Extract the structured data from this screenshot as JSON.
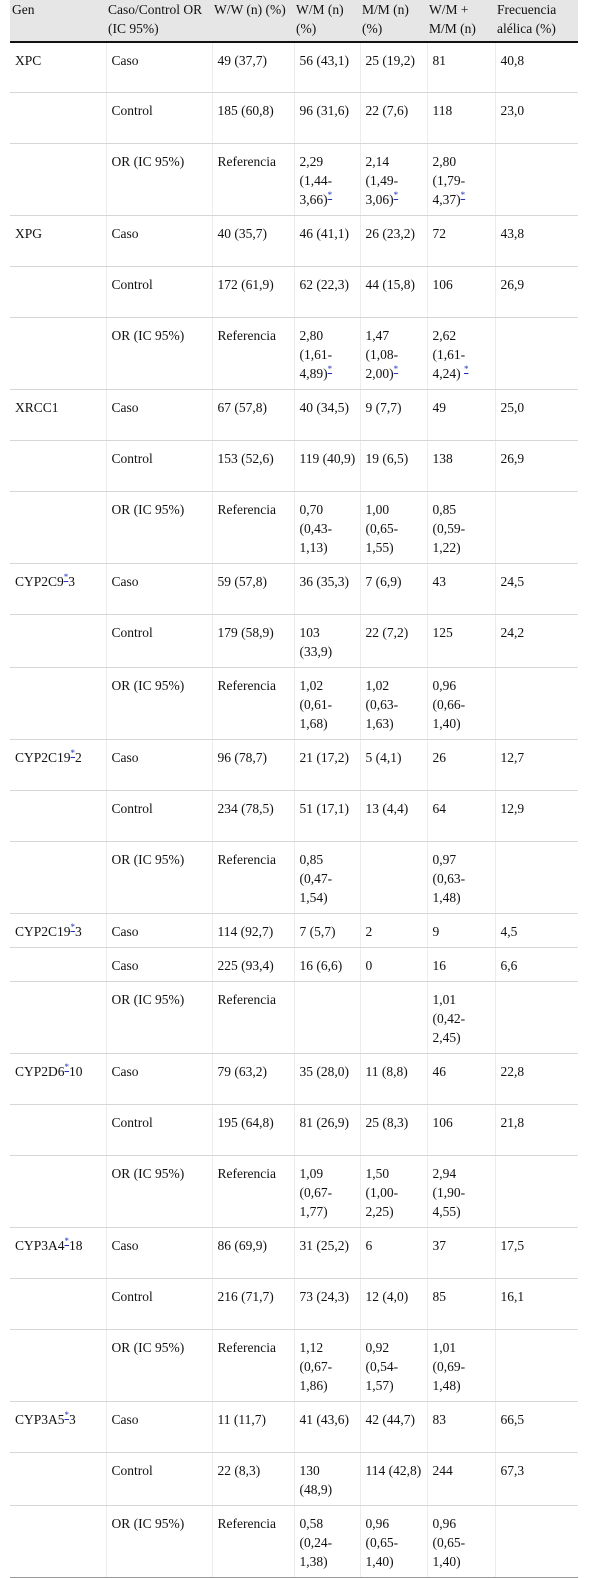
{
  "headers": [
    "Gen",
    "Caso/Control OR (IC 95%)",
    "W/W (n) (%)",
    "W/M (n) (%)",
    "M/M (n) (%)",
    "W/M + M/M (n)",
    "Frecuencia alélica (%)"
  ],
  "rows": [
    {
      "h": 50,
      "gene": "XPC",
      "gene_ref": "",
      "gene_suffix": "",
      "group": "Caso",
      "ww": "49 (37,7)",
      "wm": "56 (43,1)",
      "mm": "25 (19,2)",
      "wmmm": "81",
      "freq": "40,8"
    },
    {
      "h": 51,
      "gene": "",
      "gene_ref": "",
      "gene_suffix": "",
      "group": "Control",
      "ww": "185 (60,8)",
      "wm": "96 (31,6)",
      "mm": "22 (7,6)",
      "wmmm": "118",
      "freq": "23,0"
    },
    {
      "h": 71,
      "gene": "",
      "gene_ref": "",
      "gene_suffix": "",
      "group": "OR (IC 95%)",
      "ww": "Referencia",
      "wm": "2,29 (1,44-3,66)",
      "wm_ref": "*",
      "mm": "2,14 (1,49-3,06)",
      "mm_ref": "*",
      "wmmm": "2,80 (1,79-4,37)",
      "wmmm_ref": "*",
      "freq": ""
    },
    {
      "h": 51,
      "gene": "XPG",
      "gene_ref": "",
      "gene_suffix": "",
      "group": "Caso",
      "ww": "40 (35,7)",
      "wm": "46 (41,1)",
      "mm": "26 (23,2)",
      "wmmm": "72",
      "freq": "43,8"
    },
    {
      "h": 51,
      "gene": "",
      "gene_ref": "",
      "gene_suffix": "",
      "group": "Control",
      "ww": "172 (61,9)",
      "wm": "62 (22,3)",
      "mm": "44 (15,8)",
      "wmmm": "106",
      "freq": "26,9"
    },
    {
      "h": 71,
      "gene": "",
      "gene_ref": "",
      "gene_suffix": "",
      "group": "OR (IC 95%)",
      "ww": "Referencia",
      "wm": "2,80 (1,61-4,89)",
      "wm_ref": "*",
      "mm": "1,47 (1,08-2,00)",
      "mm_ref": "*",
      "wmmm": "2,62 (1,61-4,24) ",
      "wmmm_ref": "*",
      "freq": ""
    },
    {
      "h": 51,
      "gene": "XRCC1",
      "gene_ref": "",
      "gene_suffix": "",
      "group": "Caso",
      "ww": "67 (57,8)",
      "wm": "40 (34,5)",
      "mm": "9 (7,7)",
      "wmmm": "49",
      "freq": "25,0"
    },
    {
      "h": 51,
      "gene": "",
      "gene_ref": "",
      "gene_suffix": "",
      "group": "Control",
      "ww": "153 (52,6)",
      "wm": "119 (40,9)",
      "mm": "19 (6,5)",
      "wmmm": "138",
      "freq": "26,9"
    },
    {
      "h": 71,
      "gene": "",
      "gene_ref": "",
      "gene_suffix": "",
      "group": "OR (IC 95%)",
      "ww": "Referencia",
      "wm": "0,70 (0,43-1,13)",
      "mm": "1,00 (0,65-1,55)",
      "wmmm": "0,85 (0,59-1,22)",
      "freq": ""
    },
    {
      "h": 51,
      "gene": "CYP2C9",
      "gene_ref": "*",
      "gene_suffix": "3",
      "group": "Caso",
      "ww": "59 (57,8)",
      "wm": "36 (35,3)",
      "mm": "7 (6,9)",
      "wmmm": "43",
      "freq": "24,5"
    },
    {
      "h": 51,
      "gene": "",
      "gene_ref": "",
      "gene_suffix": "",
      "group": "Control",
      "ww": "179 (58,9)",
      "wm": "103 (33,9)",
      "mm": "22 (7,2)",
      "wmmm": "125",
      "freq": "24,2"
    },
    {
      "h": 71,
      "gene": "",
      "gene_ref": "",
      "gene_suffix": "",
      "group": "OR (IC 95%)",
      "ww": "Referencia",
      "wm": "1,02 (0,61-1,68)",
      "mm": "1,02 (0,63-1,63)",
      "wmmm": "0,96 (0,66-1,40)",
      "freq": ""
    },
    {
      "h": 51,
      "gene": "CYP2C19",
      "gene_ref": "*",
      "gene_suffix": "2",
      "group": "Caso",
      "ww": "96 (78,7)",
      "wm": "21 (17,2)",
      "mm": "5 (4,1)",
      "wmmm": "26",
      "freq": "12,7"
    },
    {
      "h": 51,
      "gene": "",
      "gene_ref": "",
      "gene_suffix": "",
      "group": "Control",
      "ww": "234 (78,5)",
      "wm": "51 (17,1)",
      "mm": "13 (4,4)",
      "wmmm": "64",
      "freq": "12,9"
    },
    {
      "h": 71,
      "gene": "",
      "gene_ref": "",
      "gene_suffix": "",
      "group": "OR (IC 95%)",
      "ww": "Referencia",
      "wm": "0,85 (0,47-1,54)",
      "mm": "",
      "wmmm": "0,97 (0,63-1,48)",
      "freq": ""
    },
    {
      "h": 31,
      "gene": "CYP2C19",
      "gene_ref": "*",
      "gene_suffix": "3",
      "group": "Caso",
      "ww": "114 (92,7)",
      "wm": "7 (5,7)",
      "mm": "2",
      "wmmm": "9",
      "freq": "4,5"
    },
    {
      "h": 31,
      "gene": "",
      "gene_ref": "",
      "gene_suffix": "",
      "group": "Caso",
      "ww": "225 (93,4)",
      "wm": "16 (6,6)",
      "mm": "0",
      "wmmm": "16",
      "freq": "6,6"
    },
    {
      "h": 71,
      "gene": "",
      "gene_ref": "",
      "gene_suffix": "",
      "group": "OR (IC 95%)",
      "ww": "Referencia",
      "wm": "",
      "mm": "",
      "wmmm": "1,01 (0,42-2,45)",
      "freq": ""
    },
    {
      "h": 51,
      "gene": "CYP2D6",
      "gene_ref": "*",
      "gene_suffix": "10",
      "group": "Caso",
      "ww": "79 (63,2)",
      "wm": "35 (28,0)",
      "mm": "11 (8,8)",
      "wmmm": "46",
      "freq": "22,8"
    },
    {
      "h": 51,
      "gene": "",
      "gene_ref": "",
      "gene_suffix": "",
      "group": "Control",
      "ww": "195 (64,8)",
      "wm": "81 (26,9)",
      "mm": "25 (8,3)",
      "wmmm": "106",
      "freq": "21,8"
    },
    {
      "h": 71,
      "gene": "",
      "gene_ref": "",
      "gene_suffix": "",
      "group": "OR (IC 95%)",
      "ww": "Referencia",
      "wm": "1,09 (0,67-1,77)",
      "mm": "1,50 (1,00-2,25)",
      "wmmm": "2,94 (1,90-4,55)",
      "freq": ""
    },
    {
      "h": 51,
      "gene": "CYP3A4",
      "gene_ref": "*",
      "gene_suffix": "18",
      "group": "Caso",
      "ww": "86 (69,9)",
      "wm": "31 (25,2)",
      "mm": "6",
      "wmmm": "37",
      "freq": "17,5"
    },
    {
      "h": 51,
      "gene": "",
      "gene_ref": "",
      "gene_suffix": "",
      "group": "Control",
      "ww": "216 (71,7)",
      "wm": "73 (24,3)",
      "mm": "12 (4,0)",
      "wmmm": "85",
      "freq": "16,1"
    },
    {
      "h": 71,
      "gene": "",
      "gene_ref": "",
      "gene_suffix": "",
      "group": "OR (IC 95%)",
      "ww": "Referencia",
      "wm": "1,12 (0,67-1,86)",
      "mm": "0,92 (0,54-1,57)",
      "wmmm": "1,01 (0,69-1,48)",
      "freq": ""
    },
    {
      "h": 51,
      "gene": "CYP3A5",
      "gene_ref": "*",
      "gene_suffix": "3",
      "group": "Caso",
      "ww": "11 (11,7)",
      "wm": "41 (43,6)",
      "mm": "42 (44,7)",
      "wmmm": "83",
      "freq": "66,5"
    },
    {
      "h": 51,
      "gene": "",
      "gene_ref": "",
      "gene_suffix": "",
      "group": "Control",
      "ww": "22 (8,3)",
      "wm": "130 (48,9)",
      "mm": "114 (42,8)",
      "wmmm": "244",
      "freq": "67,3"
    },
    {
      "h": 71,
      "gene": "",
      "gene_ref": "",
      "gene_suffix": "",
      "group": "OR (IC 95%)",
      "ww": "Referencia",
      "wm": "0,58 (0,24-1,38)",
      "mm": "0,96 (0,65-1,40)",
      "wmmm": "0,96 (0,65-1,40)",
      "freq": ""
    }
  ]
}
